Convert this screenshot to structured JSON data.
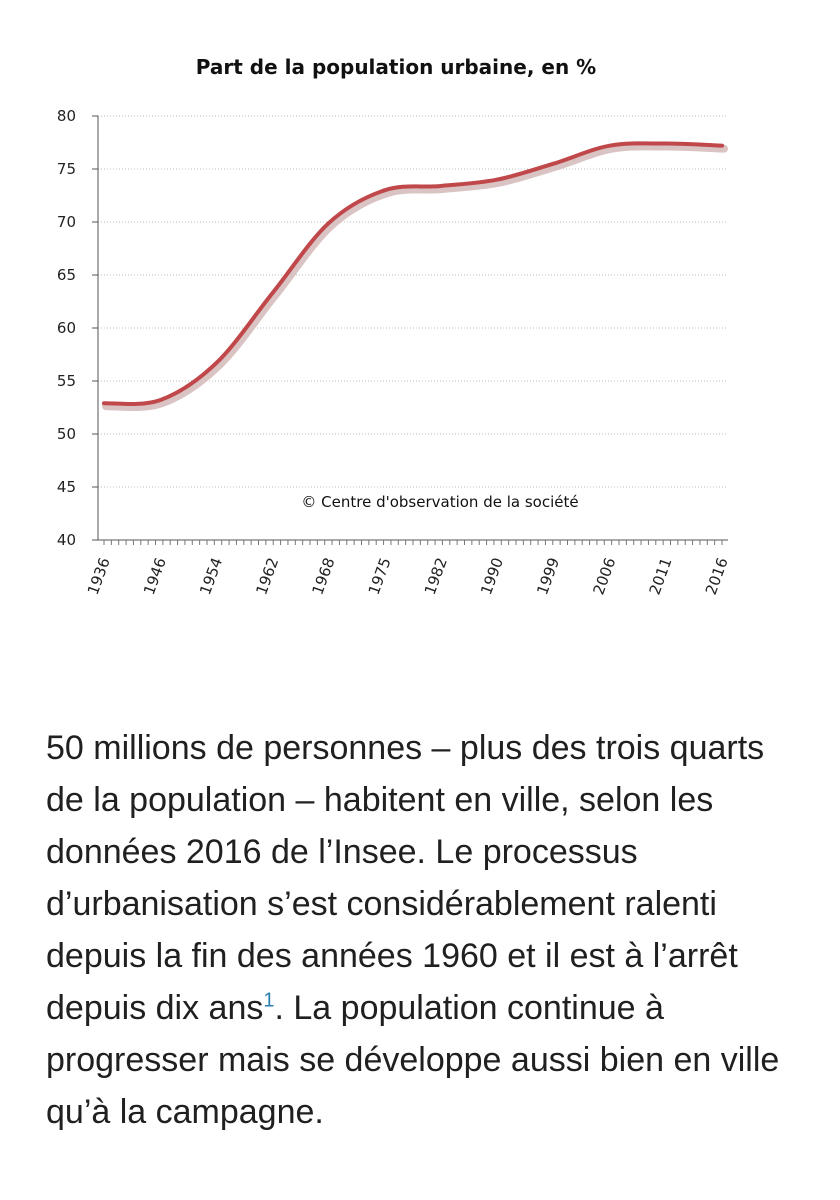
{
  "chart_data": {
    "type": "line",
    "title": "Part de la population urbaine, en %",
    "annotation": "© Centre d'observation de la société",
    "xlabel": "",
    "ylabel": "",
    "ylim": [
      40,
      80
    ],
    "yticks": [
      "40",
      "45",
      "50",
      "55",
      "60",
      "65",
      "70",
      "75",
      "80"
    ],
    "grid": "horizontal dotted",
    "x": [
      "1936",
      "1946",
      "1954",
      "1962",
      "1968",
      "1975",
      "1982",
      "1990",
      "1999",
      "2006",
      "2011",
      "2016"
    ],
    "series": [
      {
        "values": [
          52.9,
          53.2,
          56.7,
          63.3,
          69.9,
          73.0,
          73.4,
          74.0,
          75.5,
          77.2,
          77.4,
          77.2
        ],
        "color": "#c0474a"
      }
    ]
  },
  "article": {
    "text_before_ref": "50 millions de personnes – plus des trois quarts de la population – habitent en ville, selon les données 2016 de l’Insee. Le processus d’urbanisation s’est considérablement ralenti depuis la fin des années 1960 et il est à l’arrêt depuis dix ans",
    "footnote_ref": "1",
    "text_after_ref": ". La population continue à progresser mais se développe aussi bien en ville qu’à la campagne."
  }
}
